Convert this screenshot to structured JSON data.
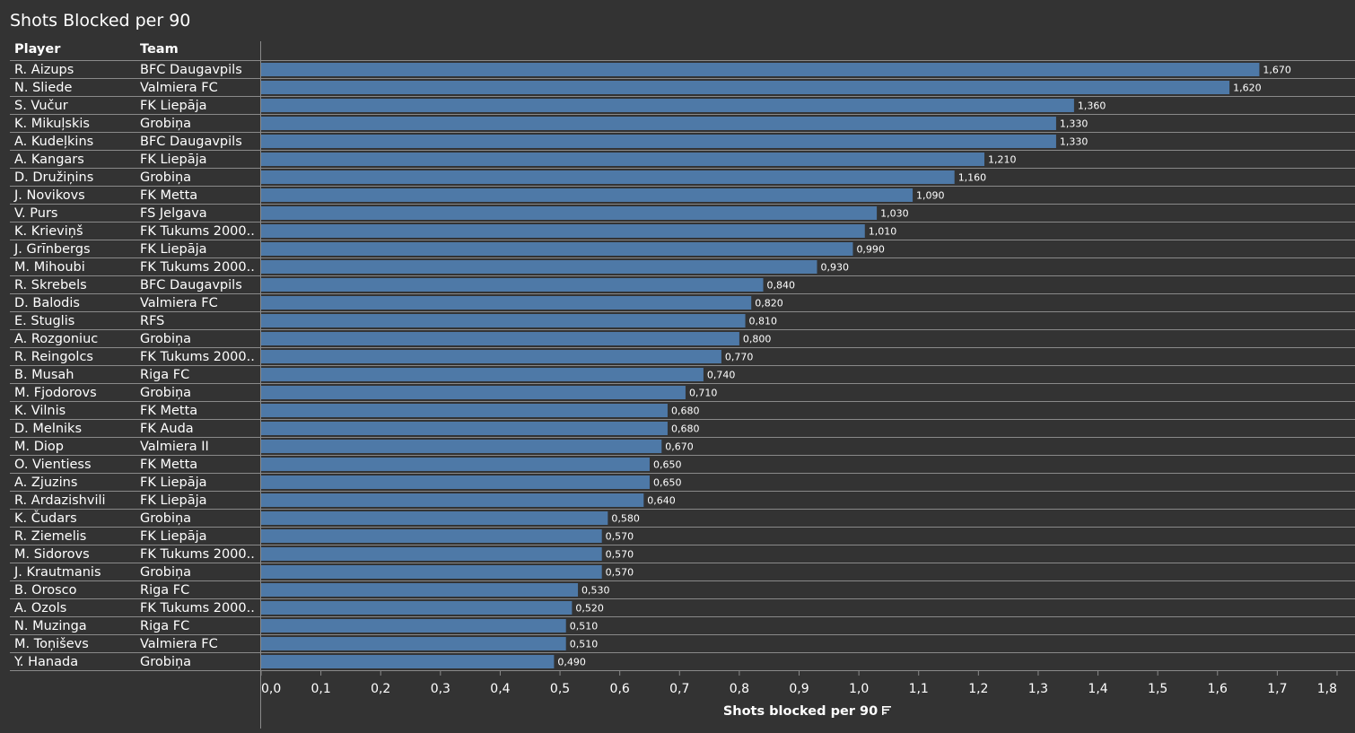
{
  "header": {
    "title": "Shots Blocked per 90",
    "player_col": "Player",
    "team_col": "Team"
  },
  "colors": {
    "background": "#333333",
    "bar": "#4e79a7",
    "gridline": "#8a8a8a",
    "text": "#ffffff"
  },
  "chart_data": {
    "type": "bar",
    "orientation": "horizontal",
    "title": "Shots Blocked per 90",
    "xlabel": "Shots blocked per 90",
    "xlim": [
      0,
      1.8
    ],
    "xticks": [
      "0,0",
      "0,1",
      "0,2",
      "0,3",
      "0,4",
      "0,5",
      "0,6",
      "0,7",
      "0,8",
      "0,9",
      "1,0",
      "1,1",
      "1,2",
      "1,3",
      "1,4",
      "1,5",
      "1,6",
      "1,7",
      "1,8"
    ],
    "grid": false,
    "rows": [
      {
        "player": "R. Aizups",
        "team": "BFC Daugavpils",
        "value": 1.67,
        "label": "1,670"
      },
      {
        "player": "N. Sliede",
        "team": "Valmiera FC",
        "value": 1.62,
        "label": "1,620"
      },
      {
        "player": "S. Vučur",
        "team": "FK Liepāja",
        "value": 1.36,
        "label": "1,360"
      },
      {
        "player": "K. Mikuļskis",
        "team": "Grobiņa",
        "value": 1.33,
        "label": "1,330"
      },
      {
        "player": "A. Kudeļkins",
        "team": "BFC Daugavpils",
        "value": 1.33,
        "label": "1,330"
      },
      {
        "player": "A. Kangars",
        "team": "FK Liepāja",
        "value": 1.21,
        "label": "1,210"
      },
      {
        "player": "D. Družiņins",
        "team": "Grobiņa",
        "value": 1.16,
        "label": "1,160"
      },
      {
        "player": "J. Novikovs",
        "team": "FK Metta",
        "value": 1.09,
        "label": "1,090"
      },
      {
        "player": "V. Purs",
        "team": "FS Jelgava",
        "value": 1.03,
        "label": "1,030"
      },
      {
        "player": "K. Krieviņš",
        "team": "FK Tukums 2000..",
        "value": 1.01,
        "label": "1,010"
      },
      {
        "player": "J. Grīnbergs",
        "team": "FK Liepāja",
        "value": 0.99,
        "label": "0,990"
      },
      {
        "player": "M. Mihoubi",
        "team": "FK Tukums 2000..",
        "value": 0.93,
        "label": "0,930"
      },
      {
        "player": "R. Skrebels",
        "team": "BFC Daugavpils",
        "value": 0.84,
        "label": "0,840"
      },
      {
        "player": "D. Balodis",
        "team": "Valmiera FC",
        "value": 0.82,
        "label": "0,820"
      },
      {
        "player": "E. Stuglis",
        "team": "RFS",
        "value": 0.81,
        "label": "0,810"
      },
      {
        "player": "A. Rozgoniuc",
        "team": "Grobiņa",
        "value": 0.8,
        "label": "0,800"
      },
      {
        "player": "R. Reingolcs",
        "team": "FK Tukums 2000..",
        "value": 0.77,
        "label": "0,770"
      },
      {
        "player": "B. Musah",
        "team": "Riga FC",
        "value": 0.74,
        "label": "0,740"
      },
      {
        "player": "M. Fjodorovs",
        "team": "Grobiņa",
        "value": 0.71,
        "label": "0,710"
      },
      {
        "player": "K. Vilnis",
        "team": "FK Metta",
        "value": 0.68,
        "label": "0,680"
      },
      {
        "player": "D. Melniks",
        "team": "FK Auda",
        "value": 0.68,
        "label": "0,680"
      },
      {
        "player": "M. Diop",
        "team": "Valmiera II",
        "value": 0.67,
        "label": "0,670"
      },
      {
        "player": "O. Vientiess",
        "team": "FK Metta",
        "value": 0.65,
        "label": "0,650"
      },
      {
        "player": "A. Zjuzins",
        "team": "FK Liepāja",
        "value": 0.65,
        "label": "0,650"
      },
      {
        "player": "R. Ardazishvili",
        "team": "FK Liepāja",
        "value": 0.64,
        "label": "0,640"
      },
      {
        "player": "K. Čudars",
        "team": "Grobiņa",
        "value": 0.58,
        "label": "0,580"
      },
      {
        "player": "R. Ziemelis",
        "team": "FK Liepāja",
        "value": 0.57,
        "label": "0,570"
      },
      {
        "player": "M. Sidorovs",
        "team": "FK Tukums 2000..",
        "value": 0.57,
        "label": "0,570"
      },
      {
        "player": "J. Krautmanis",
        "team": "Grobiņa",
        "value": 0.57,
        "label": "0,570"
      },
      {
        "player": "B. Orosco",
        "team": "Riga FC",
        "value": 0.53,
        "label": "0,530"
      },
      {
        "player": "A. Ozols",
        "team": "FK Tukums 2000..",
        "value": 0.52,
        "label": "0,520"
      },
      {
        "player": "N. Muzinga",
        "team": "Riga FC",
        "value": 0.51,
        "label": "0,510"
      },
      {
        "player": "M. Toņiševs",
        "team": "Valmiera FC",
        "value": 0.51,
        "label": "0,510"
      },
      {
        "player": "Y. Hanada",
        "team": "Grobiņa",
        "value": 0.49,
        "label": "0,490"
      }
    ]
  }
}
